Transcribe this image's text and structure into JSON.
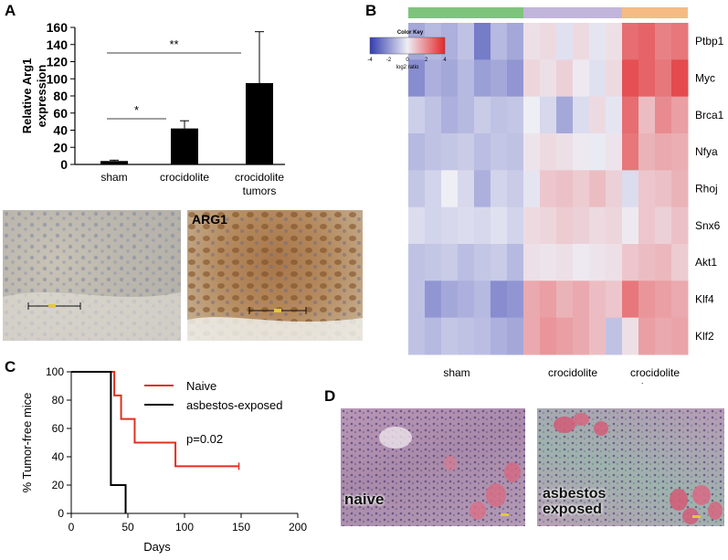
{
  "panels": {
    "A": "A",
    "B": "B",
    "C": "C",
    "D": "D"
  },
  "chart_data": [
    {
      "type": "bar",
      "panel": "A",
      "categories": [
        "sham",
        "crocidolite",
        "crocidolite tumors"
      ],
      "category_lines": [
        [
          "sham"
        ],
        [
          "crocidolite"
        ],
        [
          "crocidolite",
          "tumors"
        ]
      ],
      "values": [
        4,
        42,
        95
      ],
      "errors": [
        1,
        9,
        60
      ],
      "ylabel_lines": [
        "Relative Arg1",
        "expression"
      ],
      "ylim": [
        0,
        160
      ],
      "yticks": [
        0,
        20,
        40,
        60,
        80,
        100,
        120,
        140,
        160
      ],
      "significance": [
        {
          "from": 0,
          "to": 1,
          "label": "*"
        },
        {
          "from": 0,
          "to": 2,
          "label": "**"
        }
      ]
    },
    {
      "type": "heatmap",
      "panel": "B",
      "rows": [
        "Ptbp1",
        "Myc",
        "Brca1",
        "Nfya",
        "Rhoj",
        "Snx6",
        "Akt1",
        "Klf4",
        "Klf2"
      ],
      "groups": [
        {
          "label_lines": [
            "sham"
          ],
          "count": 7,
          "color": "#7ec47c"
        },
        {
          "label_lines": [
            "crocidolite"
          ],
          "count": 6,
          "color": "#c1b5dc"
        },
        {
          "label_lines": [
            "crocidolite",
            "tumor"
          ],
          "count": 4,
          "color": "#f5bb84"
        }
      ],
      "color_key": {
        "title": "Color Key",
        "label": "log2 ratio",
        "ticks": [
          "-4",
          "-2",
          "0",
          "2",
          "4"
        ],
        "range": [
          -4,
          4
        ]
      },
      "values": [
        [
          -1.6,
          -1.2,
          -1.4,
          -1.0,
          -2.6,
          -1.2,
          -1.6,
          0.3,
          0.4,
          -0.3,
          0.4,
          -0.2,
          0.3,
          2.6,
          2.8,
          2.2,
          2.4
        ],
        [
          -2.2,
          -1.4,
          -1.6,
          -1.2,
          -1.8,
          -1.6,
          -2.0,
          0.5,
          0.3,
          0.6,
          0.1,
          -0.3,
          0.4,
          3.2,
          2.8,
          2.4,
          3.3
        ],
        [
          -0.7,
          -1.0,
          -1.4,
          -1.2,
          -0.8,
          -1.0,
          -0.9,
          0.0,
          -0.5,
          -1.6,
          -0.4,
          0.4,
          -0.2,
          2.6,
          1.0,
          2.0,
          1.6
        ],
        [
          -1.2,
          -1.0,
          -0.9,
          -0.8,
          -1.1,
          -0.9,
          -1.0,
          0.2,
          0.4,
          0.3,
          0.1,
          -0.1,
          0.2,
          2.4,
          1.2,
          1.4,
          1.3
        ],
        [
          -0.9,
          -0.6,
          0.0,
          -0.5,
          -1.4,
          -0.6,
          -0.8,
          -0.2,
          0.8,
          0.9,
          0.7,
          1.0,
          0.6,
          -0.4,
          0.8,
          0.9,
          1.2
        ],
        [
          -0.4,
          -0.6,
          -0.5,
          -0.4,
          -0.5,
          -0.3,
          -0.6,
          0.4,
          0.5,
          0.7,
          0.6,
          0.4,
          0.5,
          0.1,
          0.8,
          0.6,
          0.9
        ],
        [
          -1.0,
          -0.9,
          -0.8,
          -1.1,
          -0.9,
          -0.8,
          -1.2,
          0.3,
          0.2,
          0.3,
          0.1,
          0.2,
          0.3,
          0.8,
          1.0,
          1.1,
          0.7
        ],
        [
          -1.0,
          -2.0,
          -1.6,
          -1.4,
          -1.2,
          -2.2,
          -2.0,
          1.4,
          1.6,
          1.2,
          1.4,
          1.0,
          0.8,
          2.4,
          1.8,
          1.6,
          1.4
        ],
        [
          -1.0,
          -1.2,
          -0.9,
          -1.0,
          -1.1,
          -1.4,
          -1.6,
          1.4,
          1.8,
          1.6,
          1.4,
          1.0,
          -1.0,
          0.3,
          1.6,
          1.4,
          1.5
        ]
      ]
    },
    {
      "type": "line",
      "panel": "C",
      "step": true,
      "xlabel": "Days",
      "ylabel": "% Tumor-free mice",
      "xlim": [
        0,
        200
      ],
      "ylim": [
        0,
        100
      ],
      "xticks": [
        0,
        50,
        100,
        150,
        200
      ],
      "yticks": [
        0,
        20,
        40,
        60,
        80,
        100
      ],
      "annotation": "p=0.02",
      "series": [
        {
          "name": "Naive",
          "color": "#e0301e",
          "x": [
            0,
            38,
            38,
            44,
            44,
            56,
            56,
            92,
            92,
            148
          ],
          "y": [
            100,
            100,
            83.3,
            83.3,
            66.7,
            66.7,
            50,
            50,
            33.3,
            33.3
          ]
        },
        {
          "name": "asbestos-exposed",
          "color": "#000000",
          "x": [
            0,
            35,
            35,
            48,
            48
          ],
          "y": [
            100,
            100,
            20,
            20,
            0
          ]
        }
      ]
    }
  ],
  "micrographs": {
    "arg1_label": "ARG1",
    "naive_label": "naive",
    "exposed_label_lines": [
      "asbestos",
      "exposed"
    ]
  }
}
